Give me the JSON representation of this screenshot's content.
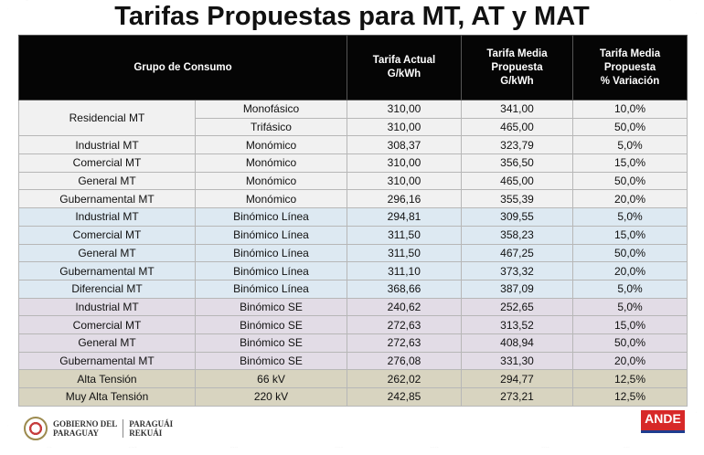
{
  "title": "Tarifas Propuestas  para MT, AT y MAT",
  "headers": {
    "grupo": "Grupo de Consumo",
    "actual": [
      "Tarifa Actual",
      "G/kWh"
    ],
    "media": [
      "Tarifa Media",
      "Propuesta",
      "G/kWh"
    ],
    "variacion": [
      "Tarifa Media",
      "Propuesta",
      "% Variación"
    ]
  },
  "groups": [
    {
      "name": "Residencial MT",
      "rows": [
        {
          "tipo": "Monofásico",
          "actual": "310,00",
          "propuesta": "341,00",
          "variacion": "10,0%"
        },
        {
          "tipo": "Trifásico",
          "actual": "310,00",
          "propuesta": "465,00",
          "variacion": "50,0%"
        }
      ]
    },
    {
      "name": "Industrial MT",
      "rows": [
        {
          "tipo": "Monómico",
          "actual": "308,37",
          "propuesta": "323,79",
          "variacion": "5,0%"
        }
      ]
    },
    {
      "name": "Comercial MT",
      "rows": [
        {
          "tipo": "Monómico",
          "actual": "310,00",
          "propuesta": "356,50",
          "variacion": "15,0%"
        }
      ]
    },
    {
      "name": "General MT",
      "rows": [
        {
          "tipo": "Monómico",
          "actual": "310,00",
          "propuesta": "465,00",
          "variacion": "50,0%"
        }
      ]
    },
    {
      "name": "Gubernamental MT",
      "rows": [
        {
          "tipo": "Monómico",
          "actual": "296,16",
          "propuesta": "355,39",
          "variacion": "20,0%"
        }
      ]
    },
    {
      "name": "Industrial MT",
      "rows": [
        {
          "tipo": "Binómico Línea",
          "actual": "294,81",
          "propuesta": "309,55",
          "variacion": "5,0%"
        }
      ]
    },
    {
      "name": "Comercial MT",
      "rows": [
        {
          "tipo": "Binómico Línea",
          "actual": "311,50",
          "propuesta": "358,23",
          "variacion": "15,0%"
        }
      ]
    },
    {
      "name": "General MT",
      "rows": [
        {
          "tipo": "Binómico Línea",
          "actual": "311,50",
          "propuesta": "467,25",
          "variacion": "50,0%"
        }
      ]
    },
    {
      "name": "Gubernamental MT",
      "rows": [
        {
          "tipo": "Binómico Línea",
          "actual": "311,10",
          "propuesta": "373,32",
          "variacion": "20,0%"
        }
      ]
    },
    {
      "name": "Diferencial MT",
      "rows": [
        {
          "tipo": "Binómico Línea",
          "actual": "368,66",
          "propuesta": "387,09",
          "variacion": "5,0%"
        }
      ]
    },
    {
      "name": "Industrial MT",
      "rows": [
        {
          "tipo": "Binómico SE",
          "actual": "240,62",
          "propuesta": "252,65",
          "variacion": "5,0%"
        }
      ]
    },
    {
      "name": "Comercial MT",
      "rows": [
        {
          "tipo": "Binómico SE",
          "actual": "272,63",
          "propuesta": "313,52",
          "variacion": "15,0%"
        }
      ]
    },
    {
      "name": "General MT",
      "rows": [
        {
          "tipo": "Binómico SE",
          "actual": "272,63",
          "propuesta": "408,94",
          "variacion": "50,0%"
        }
      ]
    },
    {
      "name": "Gubernamental MT",
      "rows": [
        {
          "tipo": "Binómico SE",
          "actual": "276,08",
          "propuesta": "331,30",
          "variacion": "20,0%"
        }
      ]
    },
    {
      "name": "Alta Tensión",
      "rows": [
        {
          "tipo": "66 kV",
          "actual": "262,02",
          "propuesta": "294,77",
          "variacion": "12,5%"
        }
      ]
    },
    {
      "name": "Muy Alta Tensión",
      "rows": [
        {
          "tipo": "220 kV",
          "actual": "242,85",
          "propuesta": "273,21",
          "variacion": "12,5%"
        }
      ]
    }
  ],
  "group_bands": [
    0,
    0,
    0,
    0,
    0,
    1,
    1,
    1,
    1,
    1,
    2,
    2,
    2,
    2,
    3,
    3
  ],
  "band_colors": [
    "#f1f1f1",
    "#dde9f2",
    "#e2dce6",
    "#d8d4c0"
  ],
  "footer": {
    "gov_line1": "GOBIERNO DEL",
    "gov_line2": "PARAGUAY",
    "gov_line3": "PARAGUÁI",
    "gov_line4": "REKUÁI",
    "logo_text": "ANDE"
  }
}
